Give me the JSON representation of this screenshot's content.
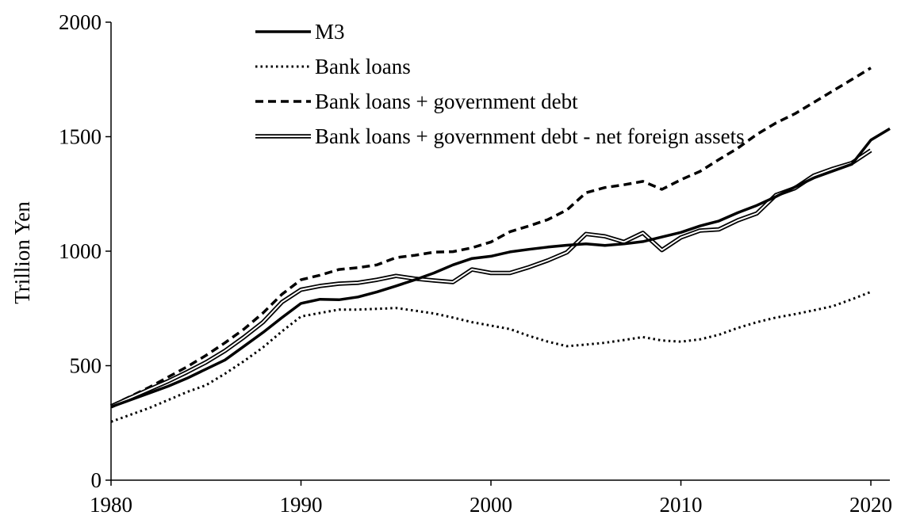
{
  "chart_data": {
    "type": "line",
    "ylabel": "Trillion Yen",
    "xlabel": "",
    "xlim": [
      1980,
      2021
    ],
    "ylim": [
      0,
      2000
    ],
    "x_ticks": [
      1980,
      1990,
      2000,
      2010,
      2020
    ],
    "y_ticks": [
      0,
      500,
      1000,
      1500,
      2000
    ],
    "grid": false,
    "legend_position": "top-center",
    "series": [
      {
        "name": "M3",
        "style": "solid-thick",
        "color": "#000000",
        "x": [
          1980,
          1981,
          1982,
          1983,
          1984,
          1985,
          1986,
          1987,
          1988,
          1989,
          1990,
          1991,
          1992,
          1993,
          1994,
          1995,
          1996,
          1997,
          1998,
          1999,
          2000,
          2001,
          2002,
          2003,
          2004,
          2005,
          2006,
          2007,
          2008,
          2009,
          2010,
          2011,
          2012,
          2013,
          2014,
          2015,
          2016,
          2017,
          2018,
          2019,
          2020,
          2021
        ],
        "values": [
          320,
          350,
          380,
          410,
          445,
          485,
          525,
          585,
          645,
          710,
          772,
          790,
          788,
          800,
          822,
          848,
          875,
          905,
          940,
          968,
          978,
          997,
          1008,
          1018,
          1026,
          1032,
          1025,
          1032,
          1042,
          1062,
          1082,
          1110,
          1132,
          1168,
          1200,
          1238,
          1280,
          1320,
          1350,
          1380,
          1485,
          1535
        ]
      },
      {
        "name": "Bank loans",
        "style": "dotted",
        "color": "#000000",
        "x": [
          1980,
          1981,
          1982,
          1983,
          1984,
          1985,
          1986,
          1987,
          1988,
          1989,
          1990,
          1991,
          1992,
          1993,
          1994,
          1995,
          1996,
          1997,
          1998,
          1999,
          2000,
          2001,
          2002,
          2003,
          2004,
          2005,
          2006,
          2007,
          2008,
          2009,
          2010,
          2011,
          2012,
          2013,
          2014,
          2015,
          2016,
          2017,
          2018,
          2019,
          2020
        ],
        "values": [
          255,
          285,
          315,
          350,
          385,
          415,
          465,
          520,
          580,
          650,
          715,
          730,
          745,
          745,
          748,
          752,
          740,
          728,
          710,
          690,
          675,
          660,
          630,
          605,
          585,
          592,
          600,
          612,
          625,
          610,
          605,
          615,
          635,
          665,
          690,
          710,
          725,
          742,
          760,
          790,
          822
        ]
      },
      {
        "name": "Bank loans + government debt",
        "style": "dashed",
        "color": "#000000",
        "x": [
          1980,
          1981,
          1982,
          1983,
          1984,
          1985,
          1986,
          1987,
          1988,
          1989,
          1990,
          1991,
          1992,
          1993,
          1994,
          1995,
          1996,
          1997,
          1998,
          1999,
          2000,
          2001,
          2002,
          2003,
          2004,
          2005,
          2006,
          2007,
          2008,
          2009,
          2010,
          2011,
          2012,
          2013,
          2014,
          2015,
          2016,
          2017,
          2018,
          2019,
          2020
        ],
        "values": [
          325,
          365,
          405,
          450,
          495,
          545,
          600,
          660,
          730,
          812,
          875,
          895,
          920,
          928,
          940,
          972,
          982,
          996,
          998,
          1015,
          1040,
          1085,
          1110,
          1138,
          1180,
          1255,
          1278,
          1290,
          1305,
          1270,
          1312,
          1348,
          1400,
          1450,
          1510,
          1560,
          1600,
          1650,
          1700,
          1750,
          1800
        ]
      },
      {
        "name": "Bank loans + government debt - net foreign assets",
        "style": "double",
        "color": "#000000",
        "x": [
          1980,
          1981,
          1982,
          1983,
          1984,
          1985,
          1986,
          1987,
          1988,
          1989,
          1990,
          1991,
          1992,
          1993,
          1994,
          1995,
          1996,
          1997,
          1998,
          1999,
          2000,
          2001,
          2002,
          2003,
          2004,
          2005,
          2006,
          2007,
          2008,
          2009,
          2010,
          2011,
          2012,
          2013,
          2014,
          2015,
          2016,
          2017,
          2018,
          2019,
          2020
        ],
        "values": [
          322,
          360,
          396,
          432,
          472,
          515,
          565,
          625,
          690,
          778,
          832,
          848,
          858,
          862,
          875,
          892,
          880,
          872,
          865,
          920,
          905,
          905,
          930,
          960,
          995,
          1075,
          1065,
          1040,
          1080,
          1005,
          1060,
          1090,
          1095,
          1135,
          1165,
          1245,
          1275,
          1330,
          1360,
          1385,
          1440
        ]
      }
    ]
  }
}
